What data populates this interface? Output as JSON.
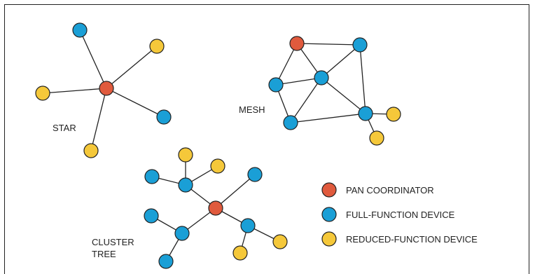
{
  "colors": {
    "pan_coordinator": "#e05a3d",
    "full_function": "#1a9fd6",
    "reduced_function": "#f5c83a",
    "edge": "#222222",
    "border": "#222222"
  },
  "topologies": {
    "star": {
      "label": "STAR"
    },
    "mesh": {
      "label": "MESH"
    },
    "cluster_tree": {
      "label_line1": "CLUSTER",
      "label_line2": "TREE"
    }
  },
  "legend": {
    "items": [
      {
        "role": "pan",
        "label": "PAN COORDINATOR"
      },
      {
        "role": "ffd",
        "label": "FULL-FUNCTION DEVICE"
      },
      {
        "role": "rfd",
        "label": "REDUCED-FUNCTION DEVICE"
      }
    ]
  }
}
